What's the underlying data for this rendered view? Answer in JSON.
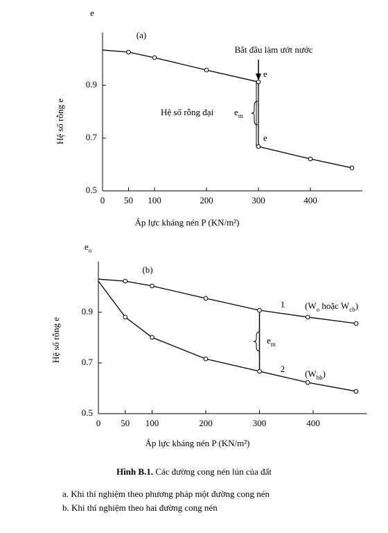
{
  "chart_data": [
    {
      "type": "line",
      "panel_label": "(a)",
      "axis_symbol": [
        "e"
      ],
      "x_label": "Áp lực kháng nén P (KN/m²)",
      "y_label": "Hệ số rỗng e",
      "xlim": [
        0,
        500
      ],
      "ylim": [
        0.5,
        1.1
      ],
      "xticks": [
        0,
        50,
        100,
        200,
        300,
        400
      ],
      "yticks": [
        0.5,
        0.7,
        0.9
      ],
      "series": [
        {
          "color": "#000000",
          "x": [
            0,
            50,
            100,
            200,
            300,
            300,
            400,
            480
          ],
          "values": [
            1.034,
            1.026,
            1.005,
            0.958,
            0.913,
            0.668,
            0.621,
            0.587
          ]
        }
      ],
      "annotations": [
        [
          "Bắt đầu làm ướt nước"
        ],
        [
          "e"
        ],
        [
          "Hệ số rỗng đại"
        ],
        [
          "e",
          "m"
        ],
        [
          "e"
        ]
      ]
    },
    {
      "type": "line",
      "panel_label": "(b)",
      "axis_symbol": [
        "e",
        "o"
      ],
      "x_label": "Áp lực kháng nén P (KN/m²)",
      "y_label": "Hệ số rỗng e",
      "xlim": [
        0,
        500
      ],
      "ylim": [
        0.5,
        1.1
      ],
      "xticks": [
        0,
        50,
        100,
        200,
        300,
        400
      ],
      "yticks": [
        0.5,
        0.7,
        0.9
      ],
      "series": [
        {
          "color": "#000000",
          "x": [
            0,
            50,
            100,
            200,
            300,
            390,
            480
          ],
          "values": [
            1.031,
            1.023,
            1.004,
            0.955,
            0.908,
            0.881,
            0.856
          ]
        },
        {
          "color": "#000000",
          "x": [
            0,
            50,
            100,
            200,
            300,
            390,
            480
          ],
          "values": [
            1.023,
            0.881,
            0.801,
            0.716,
            0.667,
            0.623,
            0.588
          ]
        }
      ],
      "annotations": [
        [
          "1"
        ],
        [
          "(W",
          "o",
          " hoặc W",
          "cb",
          ")"
        ],
        [
          "e",
          "m"
        ],
        [
          "2"
        ],
        [
          "(W",
          "bh",
          ")"
        ]
      ]
    }
  ],
  "caption": {
    "label": "Hình B.1.",
    "text": "Các đường cong nén lún của đất"
  },
  "notes": [
    "a. Khi thí nghiệm theo phương pháp một đường cong nén",
    "b. Khi thí nghiệm theo hai đường cong nén"
  ]
}
